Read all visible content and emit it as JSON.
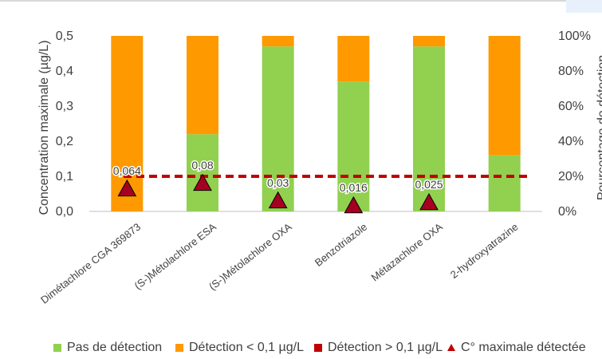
{
  "chart_data": {
    "type": "bar",
    "title": "",
    "subtitle": "",
    "ylabel_left": "Concentration maximale (µg/L)",
    "ylabel_right": "Pourcentage de détection",
    "categories": [
      "Dimétachlore CGA 369873",
      "(S-)Métolachlore ESA",
      "(S-)Métolachlore OXA",
      "Benzotriazole",
      "Métazachlore OXA",
      "2-hydroxyatrazine"
    ],
    "series": [
      {
        "name": "Pas de détection",
        "color": "#92d050",
        "values": [
          0,
          44,
          94,
          74,
          94,
          32
        ]
      },
      {
        "name": "Détection < 0,1 µg/L",
        "color": "#ff9900",
        "values": [
          100,
          56,
          6,
          26,
          6,
          68
        ]
      },
      {
        "name": "Détection > 0,1 µg/L",
        "color": "#c00000",
        "values": [
          0,
          0,
          0,
          0,
          0,
          0
        ]
      },
      {
        "name": "C° maximale détectée",
        "color": "#c00000",
        "values": [
          0.064,
          0.08,
          0.03,
          0.016,
          0.025,
          null
        ],
        "labels": [
          "0,064",
          "0,08",
          "0,03",
          "0,016",
          "0,025",
          ""
        ]
      }
    ],
    "left_axis": {
      "ylim": [
        0,
        0.5
      ],
      "ticks": [
        {
          "value": 0.0,
          "label": "0,0"
        },
        {
          "value": 0.1,
          "label": "0,1"
        },
        {
          "value": 0.2,
          "label": "0,2"
        },
        {
          "value": 0.3,
          "label": "0,3"
        },
        {
          "value": 0.4,
          "label": "0,4"
        },
        {
          "value": 0.5,
          "label": "0,5"
        }
      ]
    },
    "right_axis": {
      "ylim": [
        0,
        100
      ],
      "ticks": [
        {
          "value": 0,
          "label": "0%"
        },
        {
          "value": 20,
          "label": "20%"
        },
        {
          "value": 40,
          "label": "40%"
        },
        {
          "value": 60,
          "label": "60%"
        },
        {
          "value": 80,
          "label": "80%"
        },
        {
          "value": 100,
          "label": "100%"
        }
      ]
    },
    "reference_line": {
      "value": 0.1,
      "axis": "left",
      "color": "#c00000",
      "style": "dashed"
    },
    "legend": {
      "placement": "bottom",
      "items": [
        {
          "label": "Pas de détection",
          "color": "#92d050",
          "marker": "square"
        },
        {
          "label": "Détection < 0,1 µg/L",
          "color": "#ff9900",
          "marker": "square"
        },
        {
          "label": "Détection > 0,1 µg/L",
          "color": "#c00000",
          "marker": "square"
        },
        {
          "label": "C° maximale détectée",
          "color": "#c00000",
          "marker": "triangle"
        }
      ]
    },
    "grid": false
  }
}
